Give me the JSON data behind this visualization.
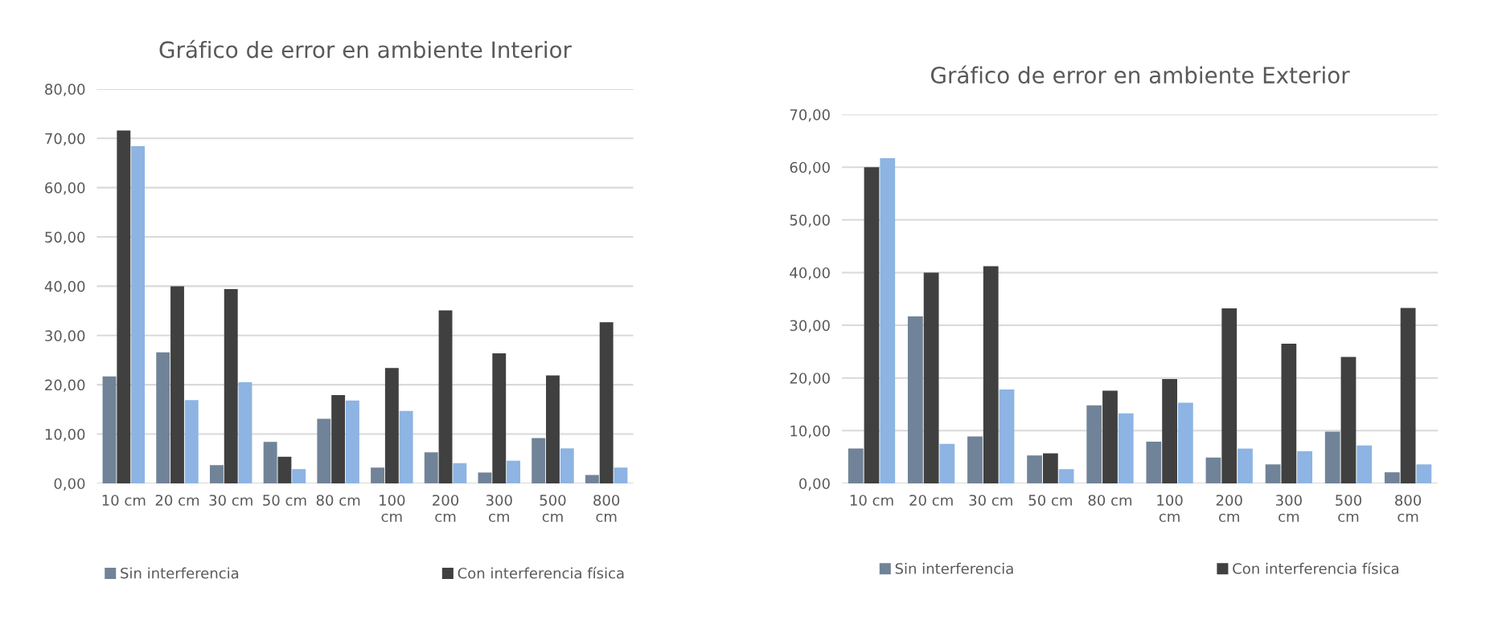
{
  "chart_data": [
    {
      "type": "bar",
      "title": "Gráfico de error en ambiente Interior",
      "categories": [
        "10 cm",
        "20 cm",
        "30 cm",
        "50 cm",
        "80 cm",
        "100\ncm",
        "200\ncm",
        "300\ncm",
        "500\ncm",
        "800\ncm"
      ],
      "series": [
        {
          "name": "Sin interferencia",
          "color": "#718398",
          "values": [
            21.7,
            26.6,
            3.7,
            8.4,
            13.1,
            3.2,
            6.3,
            2.2,
            9.2,
            1.7
          ]
        },
        {
          "name": "Con interferencia física",
          "color": "#404040",
          "values": [
            71.6,
            40.0,
            39.4,
            5.4,
            17.9,
            23.4,
            35.1,
            26.4,
            21.9,
            32.7
          ]
        },
        {
          "color": "#8db4e2",
          "values": [
            68.4,
            16.9,
            20.5,
            2.9,
            16.8,
            14.7,
            4.1,
            4.6,
            7.1,
            3.2
          ]
        }
      ],
      "ylim": [
        0,
        80
      ],
      "yticks": [
        {
          "value": 0,
          "label": "0,00"
        },
        {
          "value": 10,
          "label": "10,00"
        },
        {
          "value": 20,
          "label": "20,00"
        },
        {
          "value": 30,
          "label": "30,00"
        },
        {
          "value": 40,
          "label": "40,00"
        },
        {
          "value": 50,
          "label": "50,00"
        },
        {
          "value": 60,
          "label": "60,00"
        },
        {
          "value": 70,
          "label": "70,00"
        },
        {
          "value": 80,
          "label": "80,00"
        }
      ],
      "grid": "y",
      "legend": "bottom"
    },
    {
      "type": "bar",
      "title": "Gráfico de error en ambiente Exterior",
      "categories": [
        "10 cm",
        "20 cm",
        "30 cm",
        "50 cm",
        "80 cm",
        "100\ncm",
        "200\ncm",
        "300\ncm",
        "500\ncm",
        "800\ncm"
      ],
      "series": [
        {
          "name": "Sin interferencia",
          "color": "#718398",
          "values": [
            6.6,
            31.7,
            8.9,
            5.3,
            14.8,
            7.9,
            4.9,
            3.6,
            9.8,
            2.1
          ]
        },
        {
          "name": "Con interferencia física",
          "color": "#404040",
          "values": [
            60.0,
            40.0,
            41.2,
            5.7,
            17.6,
            19.8,
            33.2,
            26.5,
            24.0,
            33.3
          ]
        },
        {
          "color": "#8db4e2",
          "values": [
            61.7,
            7.5,
            17.8,
            2.7,
            13.3,
            15.3,
            6.6,
            6.1,
            7.2,
            3.6
          ]
        }
      ],
      "ylim": [
        0,
        70
      ],
      "yticks": [
        {
          "value": 0,
          "label": "0,00"
        },
        {
          "value": 10,
          "label": "10,00"
        },
        {
          "value": 20,
          "label": "20,00"
        },
        {
          "value": 30,
          "label": "30,00"
        },
        {
          "value": 40,
          "label": "40,00"
        },
        {
          "value": 50,
          "label": "50,00"
        },
        {
          "value": 60,
          "label": "60,00"
        },
        {
          "value": 70,
          "label": "70,00"
        }
      ],
      "grid": "y",
      "legend": "bottom"
    }
  ]
}
